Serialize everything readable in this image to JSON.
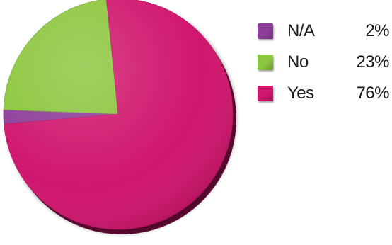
{
  "chart_data": {
    "type": "pie",
    "title": "",
    "categories": [
      "N/A",
      "No",
      "Yes"
    ],
    "values": [
      2,
      23,
      76
    ],
    "value_labels": [
      "2%",
      "23%",
      "76%"
    ],
    "colors": [
      "#8e3d9a",
      "#8cc63e",
      "#d0176e"
    ],
    "legend_position": "right",
    "style": "3d-tilted"
  }
}
